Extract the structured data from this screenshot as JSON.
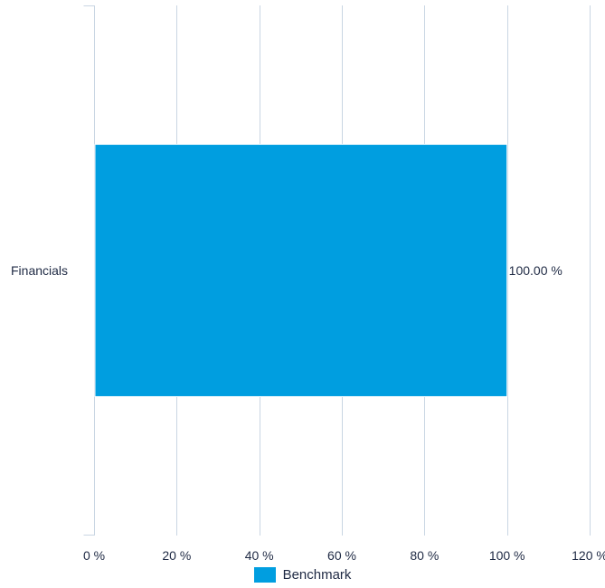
{
  "chart_data": {
    "type": "bar",
    "orientation": "horizontal",
    "categories": [
      "Financials"
    ],
    "series": [
      {
        "name": "Benchmark",
        "values": [
          100.0
        ],
        "data_labels": [
          "100.00 %"
        ],
        "color": "#009ee0"
      }
    ],
    "xlim": [
      0,
      120
    ],
    "x_ticks": [
      0,
      20,
      40,
      60,
      80,
      100,
      120
    ],
    "x_tick_labels": [
      "0 %",
      "20 %",
      "40 %",
      "60 %",
      "80 %",
      "100 %",
      "120 %"
    ],
    "grid": true,
    "grid_color": "#c9d6e3",
    "legend_position": "bottom-center"
  }
}
